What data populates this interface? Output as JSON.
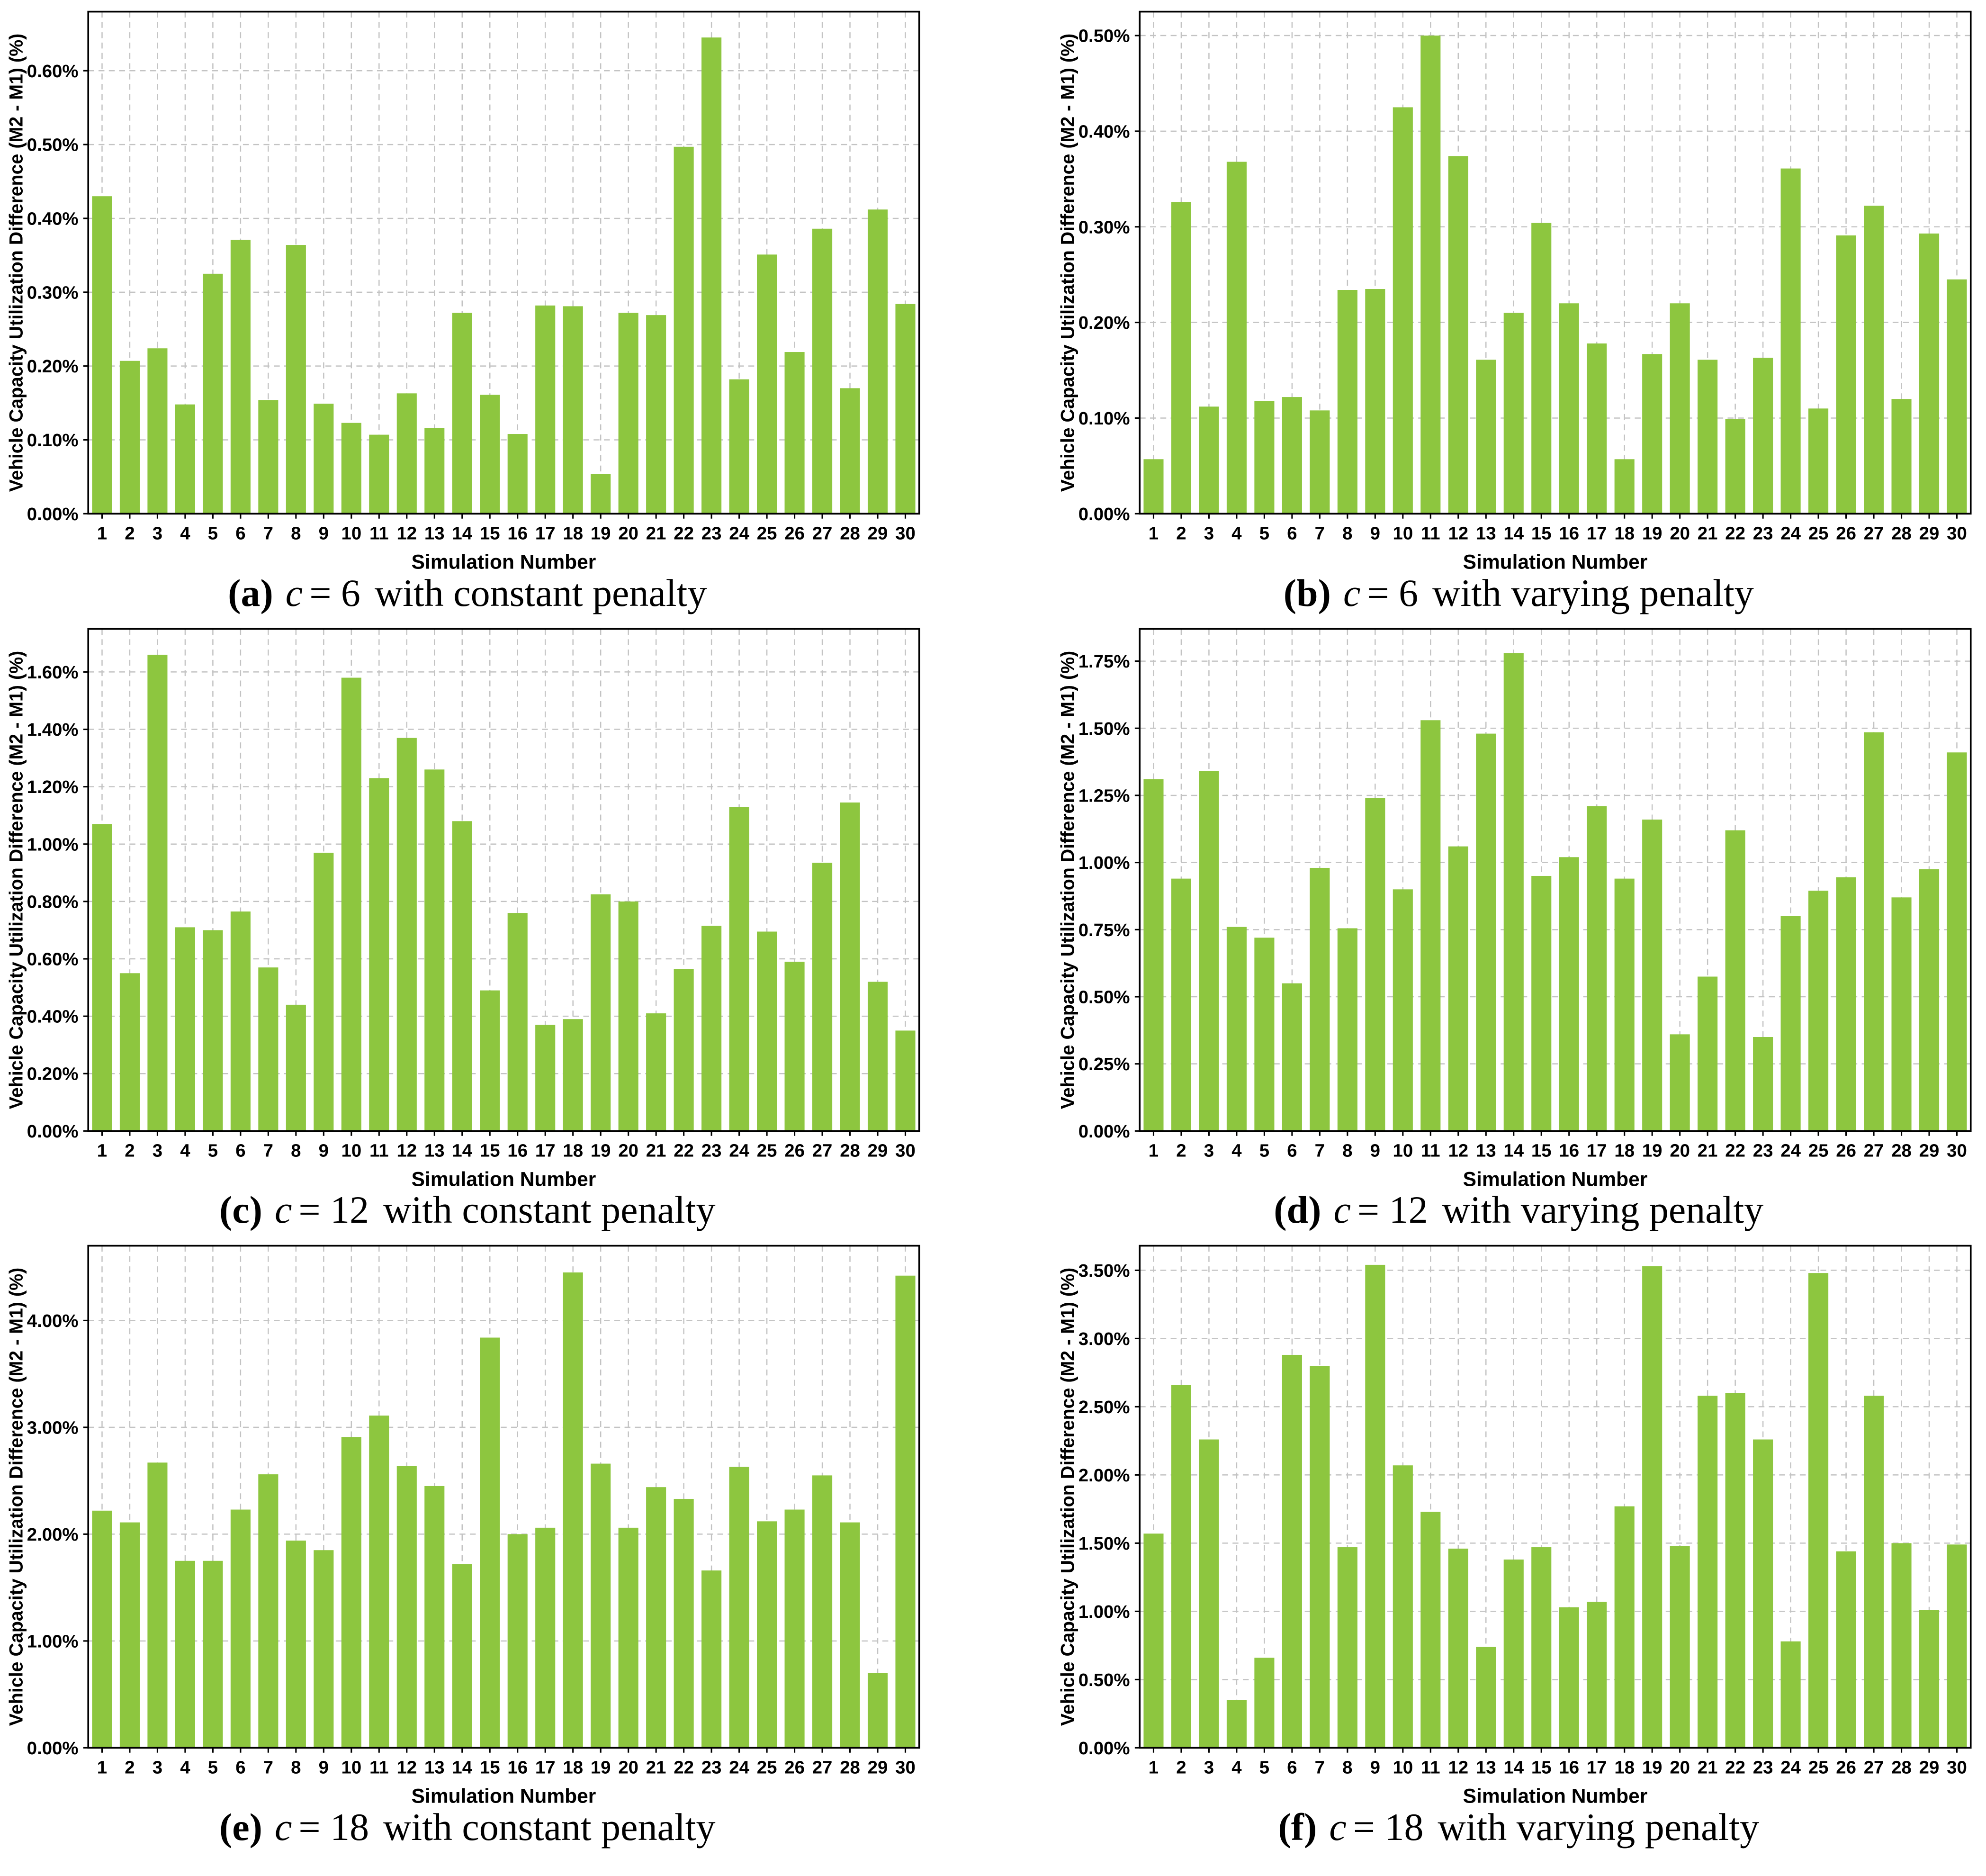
{
  "figure": {
    "xlabel": "Simulation Number",
    "ylabel": "Vehicle Capacity Utilization Difference (M2 - M1) (%)",
    "bar_color": "#8dc63f",
    "grid_color": "#c3c3c3",
    "axis_color": "#000000",
    "categories": [
      "1",
      "2",
      "3",
      "4",
      "5",
      "6",
      "7",
      "8",
      "9",
      "10",
      "11",
      "12",
      "13",
      "14",
      "15",
      "16",
      "17",
      "18",
      "19",
      "20",
      "21",
      "22",
      "23",
      "24",
      "25",
      "26",
      "27",
      "28",
      "29",
      "30"
    ]
  },
  "chart_data": [
    {
      "panel": "a",
      "type": "bar",
      "caption": {
        "tag": "(a)",
        "var": "c",
        "eq": "= 6",
        "text": "with constant penalty"
      },
      "ylabel": "Vehicle Capacity Utilization Difference (M2 - M1) (%)",
      "xlabel": "Simulation Number",
      "yticks": [
        0.0,
        0.1,
        0.2,
        0.3,
        0.4,
        0.5,
        0.6
      ],
      "ylim": [
        0,
        0.68
      ],
      "values": [
        0.43,
        0.207,
        0.224,
        0.148,
        0.325,
        0.371,
        0.154,
        0.364,
        0.149,
        0.123,
        0.107,
        0.163,
        0.116,
        0.272,
        0.161,
        0.108,
        0.282,
        0.281,
        0.054,
        0.272,
        0.269,
        0.497,
        0.645,
        0.182,
        0.351,
        0.219,
        0.386,
        0.17,
        0.412,
        0.284
      ]
    },
    {
      "panel": "b",
      "type": "bar",
      "caption": {
        "tag": "(b)",
        "var": "c",
        "eq": "= 6",
        "text": "with varying penalty"
      },
      "ylabel": "Vehicle Capacity Utilization Difference (M2 - M1) (%)",
      "xlabel": "Simulation Number",
      "yticks": [
        0.0,
        0.1,
        0.2,
        0.3,
        0.4,
        0.5
      ],
      "ylim": [
        0,
        0.525
      ],
      "values": [
        0.057,
        0.326,
        0.112,
        0.368,
        0.118,
        0.122,
        0.108,
        0.234,
        0.235,
        0.425,
        0.5,
        0.374,
        0.161,
        0.21,
        0.304,
        0.22,
        0.178,
        0.057,
        0.167,
        0.22,
        0.161,
        0.099,
        0.163,
        0.361,
        0.11,
        0.291,
        0.322,
        0.12,
        0.293,
        0.245
      ]
    },
    {
      "panel": "c",
      "type": "bar",
      "caption": {
        "tag": "(c)",
        "var": "c",
        "eq": "= 12",
        "text": "with constant penalty"
      },
      "ylabel": "Vehicle Capacity Utilization Difference (M2 - M1) (%)",
      "xlabel": "Simulation Number",
      "yticks": [
        0.0,
        0.2,
        0.4,
        0.6,
        0.8,
        1.0,
        1.2,
        1.4,
        1.6
      ],
      "ylim": [
        0,
        1.75
      ],
      "values": [
        1.07,
        0.55,
        1.66,
        0.71,
        0.7,
        0.765,
        0.57,
        0.44,
        0.97,
        1.58,
        1.23,
        1.37,
        1.26,
        1.08,
        0.49,
        0.76,
        0.37,
        0.39,
        0.825,
        0.8,
        0.41,
        0.565,
        0.715,
        1.13,
        0.695,
        0.59,
        0.935,
        1.145,
        0.52,
        0.35
      ]
    },
    {
      "panel": "d",
      "type": "bar",
      "caption": {
        "tag": "(d)",
        "var": "c",
        "eq": "= 12",
        "text": "with varying penalty"
      },
      "ylabel": "Vehicle Capacity Utilization Difference (M2 - M1) (%)",
      "xlabel": "Simulation Number",
      "yticks": [
        0.0,
        0.25,
        0.5,
        0.75,
        1.0,
        1.25,
        1.5,
        1.75
      ],
      "ylim": [
        0,
        1.87
      ],
      "values": [
        1.31,
        0.94,
        1.34,
        0.76,
        0.72,
        0.55,
        0.98,
        0.755,
        1.24,
        0.9,
        1.53,
        1.06,
        1.48,
        1.78,
        0.95,
        1.02,
        1.21,
        0.94,
        1.16,
        0.36,
        0.575,
        1.12,
        0.35,
        0.8,
        0.895,
        0.945,
        1.485,
        0.87,
        0.975,
        1.41
      ]
    },
    {
      "panel": "e",
      "type": "bar",
      "caption": {
        "tag": "(e)",
        "var": "c",
        "eq": "= 18",
        "text": "with constant penalty"
      },
      "ylabel": "Vehicle Capacity Utilization Difference (M2 - M1) (%)",
      "xlabel": "Simulation Number",
      "yticks": [
        0.0,
        1.0,
        2.0,
        3.0,
        4.0
      ],
      "ylim": [
        0,
        4.7
      ],
      "values": [
        2.22,
        2.11,
        2.67,
        1.75,
        1.75,
        2.23,
        2.56,
        1.94,
        1.85,
        2.91,
        3.11,
        2.64,
        2.45,
        1.72,
        3.84,
        2.0,
        2.06,
        4.45,
        2.66,
        2.06,
        2.44,
        2.33,
        1.66,
        2.63,
        2.12,
        2.23,
        2.55,
        2.11,
        0.7,
        4.42
      ]
    },
    {
      "panel": "f",
      "type": "bar",
      "caption": {
        "tag": "(f)",
        "var": "c",
        "eq": "= 18",
        "text": "with varying penalty"
      },
      "ylabel": "Vehicle Capacity Utilization Difference (M2 - M1) (%)",
      "xlabel": "Simulation Number",
      "yticks": [
        0.0,
        0.5,
        1.0,
        1.5,
        2.0,
        2.5,
        3.0,
        3.5
      ],
      "ylim": [
        0,
        3.68
      ],
      "values": [
        1.57,
        2.66,
        2.26,
        0.35,
        0.66,
        2.88,
        2.8,
        1.47,
        3.54,
        2.07,
        1.73,
        1.46,
        0.74,
        1.38,
        1.47,
        1.03,
        1.07,
        1.77,
        3.53,
        1.48,
        2.58,
        2.6,
        2.26,
        0.78,
        3.48,
        1.44,
        2.58,
        1.5,
        1.01,
        1.49
      ]
    }
  ]
}
